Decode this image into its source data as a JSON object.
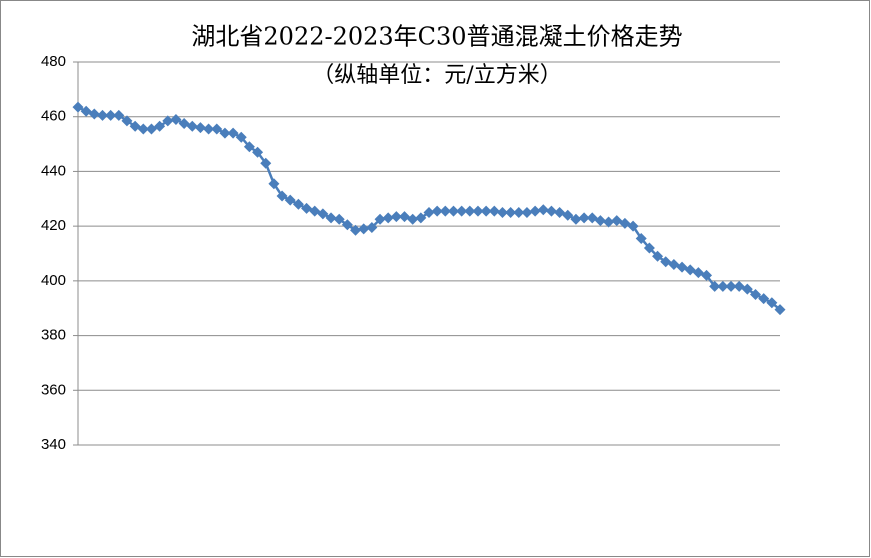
{
  "chart_data": {
    "type": "line",
    "title": "湖北省2022-2023年C30普通混凝土价格走势",
    "subtitle": "（纵轴单位：元/立方米）",
    "categories": [
      null,
      null,
      null,
      null,
      null,
      null,
      null,
      null,
      null,
      null,
      null,
      null,
      null,
      null,
      null,
      null,
      null,
      null,
      null,
      null,
      null,
      null,
      null,
      null,
      null,
      null,
      null,
      null,
      null,
      null,
      null,
      null,
      null,
      null,
      null,
      null,
      null,
      null,
      null,
      null,
      null,
      null,
      null,
      null,
      null,
      null,
      null,
      null,
      null,
      null,
      null,
      null,
      null,
      null,
      null,
      null,
      null,
      null,
      null,
      null,
      null,
      null,
      null,
      null,
      null,
      null,
      null,
      null,
      null,
      null,
      null,
      null,
      null,
      null,
      null,
      null,
      null,
      null,
      null,
      null,
      null,
      null,
      null,
      null,
      null,
      null,
      null
    ],
    "values": [
      463.5,
      462,
      461,
      460.5,
      460.5,
      460.5,
      458.5,
      456.5,
      455.5,
      455.5,
      456.5,
      458.5,
      459,
      457.5,
      456.5,
      456,
      455.5,
      455.5,
      454,
      454,
      452.5,
      449,
      447,
      443,
      435.5,
      431,
      429.5,
      428,
      426.5,
      425.5,
      424.5,
      423,
      422.5,
      420.5,
      418.5,
      419,
      419.5,
      422.5,
      423,
      423.5,
      423.5,
      422.5,
      423,
      425,
      425.5,
      425.5,
      425.5,
      425.5,
      425.5,
      425.5,
      425.5,
      425.5,
      425,
      425,
      425,
      425,
      425.5,
      426,
      425.5,
      425,
      424,
      422.5,
      423,
      423,
      422,
      421.5,
      422,
      421,
      420,
      415.5,
      412,
      409,
      407,
      406,
      405,
      404,
      403,
      402,
      398,
      398,
      398,
      398,
      397,
      395,
      393.5,
      392,
      389.5
    ],
    "color": "#4a7ebb",
    "ylim": [
      340,
      480
    ],
    "yticks": [
      340,
      360,
      380,
      400,
      420,
      440,
      460,
      480
    ],
    "grid": true
  }
}
